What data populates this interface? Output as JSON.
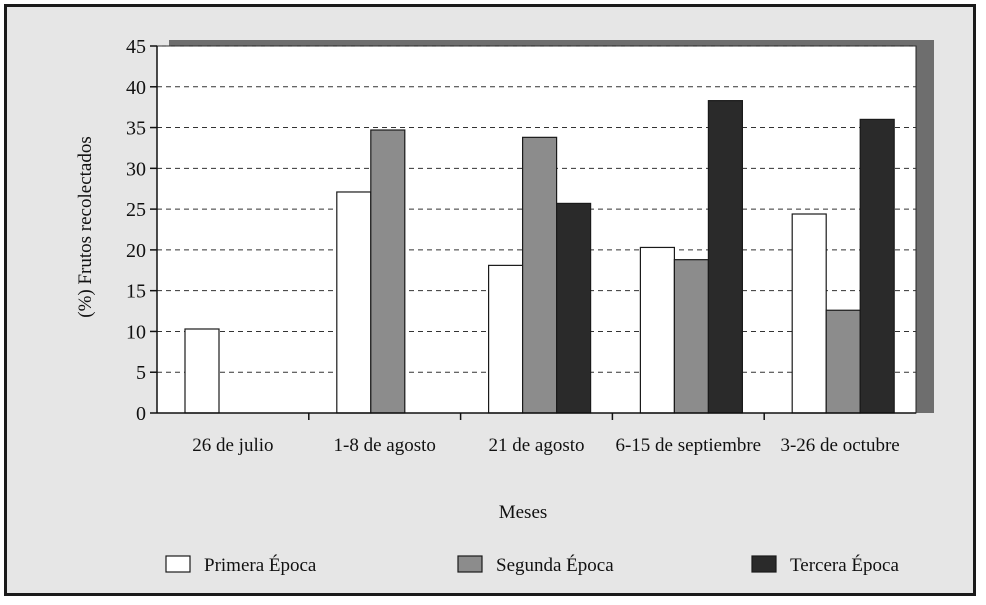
{
  "chart_data": {
    "type": "bar",
    "xlabel": "Meses",
    "ylabel": "(%) Frutos recolectados",
    "ylim": [
      0,
      45
    ],
    "yticks": [
      0,
      5,
      10,
      15,
      20,
      25,
      30,
      35,
      40,
      45
    ],
    "grid": "horizontal dashed",
    "legend_position": "bottom",
    "categories": [
      "26 de julio",
      "1-8 de agosto",
      "21 de agosto",
      "6-15 de septiembre",
      "3-26 de octubre"
    ],
    "series": [
      {
        "name": "Primera Época",
        "color": "#ffffff",
        "values": [
          10.3,
          27.1,
          18.1,
          20.3,
          24.4
        ]
      },
      {
        "name": "Segunda Época",
        "color": "#8c8c8c",
        "values": [
          null,
          34.7,
          33.8,
          18.8,
          12.6
        ]
      },
      {
        "name": "Tercera Época",
        "color": "#2a2a2a",
        "values": [
          null,
          null,
          25.7,
          38.3,
          36.0
        ]
      }
    ]
  }
}
